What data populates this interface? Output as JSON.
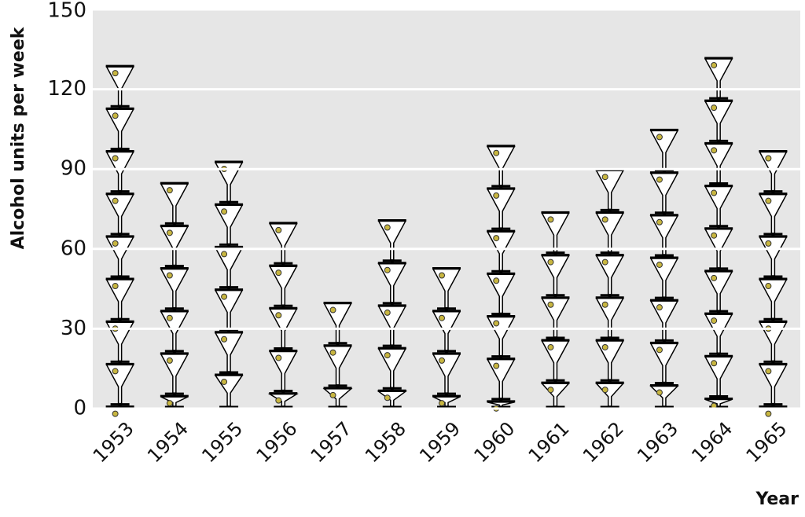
{
  "chart_data": {
    "type": "pictogram",
    "x_label": "Year",
    "y_label": "Alcohol units per week",
    "categories": [
      "1953",
      "1954",
      "1955",
      "1956",
      "1957",
      "1958",
      "1959",
      "1960",
      "1961",
      "1962",
      "1963",
      "1964",
      "1965"
    ],
    "values": [
      129,
      85,
      93,
      70,
      40,
      71,
      53,
      99,
      74,
      90,
      105,
      132,
      97
    ],
    "ylim": [
      0,
      150
    ],
    "yticks": [
      0,
      30,
      60,
      90,
      120,
      150
    ],
    "grid": true,
    "background": "#e6e6e6",
    "color": "#000000"
  }
}
